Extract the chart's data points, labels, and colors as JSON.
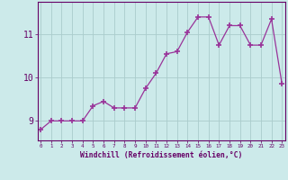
{
  "x": [
    0,
    1,
    2,
    3,
    4,
    5,
    6,
    7,
    8,
    9,
    10,
    11,
    12,
    13,
    14,
    15,
    16,
    17,
    18,
    19,
    20,
    21,
    22,
    23
  ],
  "y": [
    8.8,
    9.0,
    9.0,
    9.0,
    9.0,
    9.35,
    9.45,
    9.3,
    9.3,
    9.3,
    9.75,
    10.1,
    10.55,
    10.6,
    11.05,
    11.4,
    11.4,
    10.75,
    11.2,
    11.2,
    10.75,
    10.75,
    11.35,
    9.85
  ],
  "line_color": "#993399",
  "marker": "+",
  "marker_size": 4,
  "bg_color": "#cceaea",
  "grid_color": "#aacccc",
  "xlabel": "Windchill (Refroidissement éolien,°C)",
  "yticks": [
    9,
    10,
    11
  ],
  "xticks": [
    0,
    1,
    2,
    3,
    4,
    5,
    6,
    7,
    8,
    9,
    10,
    11,
    12,
    13,
    14,
    15,
    16,
    17,
    18,
    19,
    20,
    21,
    22,
    23
  ],
  "xlim": [
    -0.3,
    23.3
  ],
  "ylim": [
    8.55,
    11.75
  ],
  "label_color": "#660066",
  "tick_color": "#660066",
  "axis_color": "#660066",
  "xlabel_fontsize": 5.8,
  "xlabel_fontweight": "bold",
  "ytick_fontsize": 7,
  "xtick_fontsize": 4.2
}
